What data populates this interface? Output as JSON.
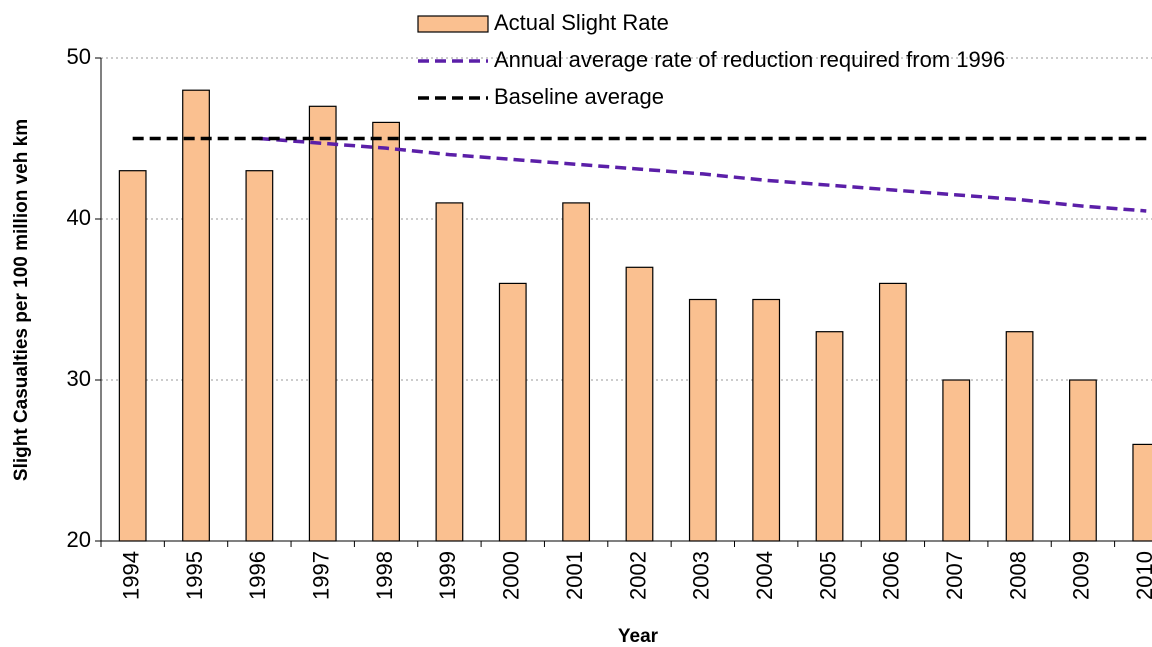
{
  "chart_data": {
    "type": "bar",
    "x_label": "Year",
    "y_label": "Slight Casualties per 100 million veh km",
    "categories": [
      "1994",
      "1995",
      "1996",
      "1997",
      "1998",
      "1999",
      "2000",
      "2001",
      "2002",
      "2003",
      "2004",
      "2005",
      "2006",
      "2007",
      "2008",
      "2009",
      "2010"
    ],
    "series": [
      {
        "name": "Actual Slight Rate",
        "type": "bar",
        "color": "#fac090",
        "values": [
          43,
          48,
          43,
          47,
          46,
          41,
          36,
          41,
          37,
          35,
          35,
          33,
          36,
          30,
          33,
          30,
          26
        ]
      },
      {
        "name": "Annual average rate of reduction required from 1996",
        "type": "line",
        "color": "#5b1fa8",
        "values": [
          null,
          null,
          45,
          44.7,
          44.4,
          44.0,
          43.7,
          43.4,
          43.1,
          42.8,
          42.4,
          42.1,
          41.8,
          41.5,
          41.2,
          40.8,
          40.5
        ]
      },
      {
        "name": "Baseline average",
        "type": "line",
        "color": "#000000",
        "values": [
          45,
          45,
          45,
          45,
          45,
          45,
          45,
          45,
          45,
          45,
          45,
          45,
          45,
          45,
          45,
          45,
          45
        ]
      }
    ],
    "ylim": [
      20,
      50
    ],
    "yticks": [
      20,
      30,
      40,
      50
    ],
    "grid": true
  }
}
